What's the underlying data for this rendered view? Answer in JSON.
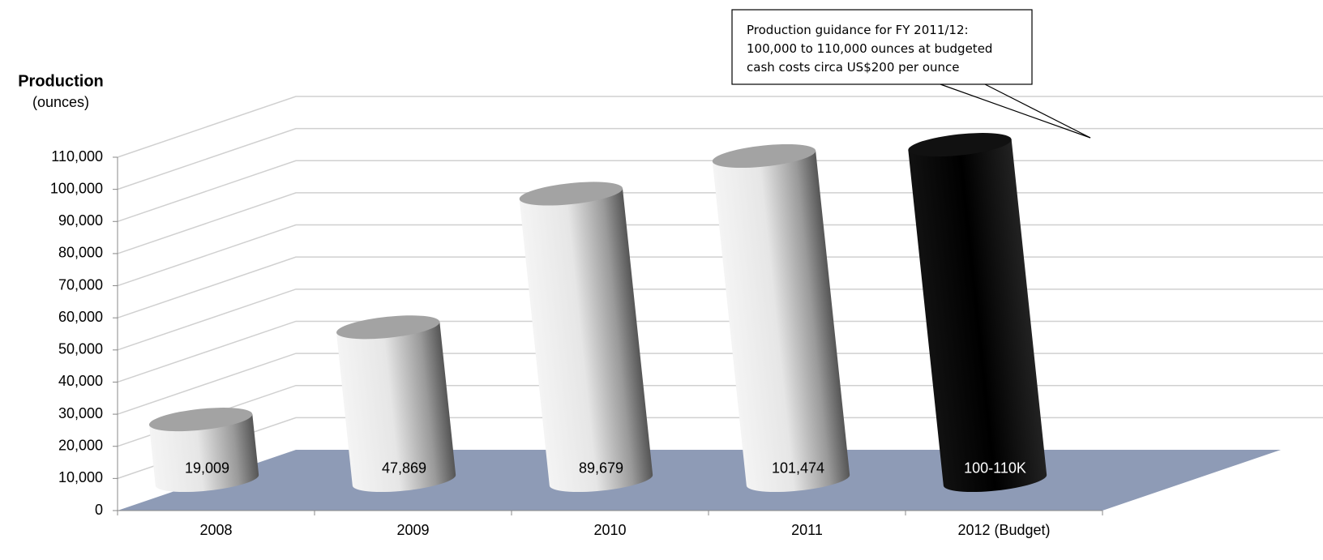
{
  "chart_data": {
    "type": "bar3d",
    "y_label": "Production",
    "y_unit": "(ounces)",
    "categories": [
      "2008",
      "2009",
      "2010",
      "2011",
      "2012 (Budget)"
    ],
    "values": [
      19009,
      47869,
      89679,
      101474,
      105000
    ],
    "value_labels": [
      "19,009",
      "47,869",
      "89,679",
      "101,474",
      "100-110K"
    ],
    "colors": [
      "#e6e6e6",
      "#e6e6e6",
      "#e6e6e6",
      "#e6e6e6",
      "#000000"
    ],
    "ylim": [
      0,
      110000
    ],
    "yticks": [
      0,
      {
        "value": 10000,
        "label": "10,000"
      },
      {
        "value": 20000,
        "label": "20,000"
      },
      {
        "value": 30000,
        "label": "30,000"
      },
      {
        "value": 40000,
        "label": "40,000"
      },
      {
        "value": 50000,
        "label": "50,000"
      },
      {
        "value": 60000,
        "label": "60,000"
      },
      {
        "value": 70000,
        "label": "70,000"
      },
      {
        "value": 80000,
        "label": "80,000"
      },
      {
        "value": 90000,
        "label": "90,000"
      },
      {
        "value": 100000,
        "label": "100,000"
      },
      {
        "value": 110000,
        "label": "110,000"
      }
    ],
    "grid": true,
    "annotation": [
      "Production guidance for  FY 2011/12:",
      "100,000 to 110,000 ounces at budgeted",
      "cash costs circa US$200 per ounce"
    ]
  }
}
